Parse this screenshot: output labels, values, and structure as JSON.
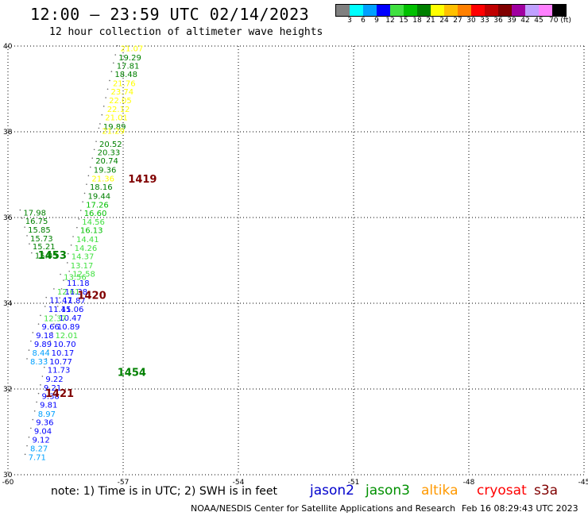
{
  "header": {
    "title": "12:00 – 23:59 UTC 02/14/2023",
    "subtitle": "12 hour collection of altimeter wave heights"
  },
  "color_scale": {
    "labels": [
      "3",
      "6",
      "9",
      "12",
      "15",
      "18",
      "21",
      "24",
      "27",
      "30",
      "33",
      "36",
      "39",
      "42",
      "45",
      "70 (ft)"
    ],
    "colors": [
      "#808080",
      "#00ffff",
      "#00a0ff",
      "#0000ff",
      "#40e040",
      "#00c000",
      "#008000",
      "#ffff00",
      "#ffc000",
      "#ff8000",
      "#ff0000",
      "#c00000",
      "#800000",
      "#a000a0",
      "#c0a0ff",
      "#ff80ff",
      "#000000"
    ]
  },
  "footer": {
    "note": "note:  1) Time is in UTC;  2) SWH is in feet",
    "satellites": [
      {
        "name": "jason2",
        "color": "#0000cc"
      },
      {
        "name": "jason3",
        "color": "#009000"
      },
      {
        "name": "altika",
        "color": "#ff9900"
      },
      {
        "name": "cryosat",
        "color": "#ff0000"
      },
      {
        "name": "s3a",
        "color": "#800000"
      }
    ],
    "credit": "NOAA/NESDIS Center for Satellite Applications and Research",
    "timestamp": "Feb 16 08:29:43 UTC 2023"
  },
  "chart_data": {
    "type": "scatter",
    "xlim": [
      -60,
      -45
    ],
    "ylim": [
      30,
      40
    ],
    "x_ticks": [
      "-60",
      "-57",
      "-54",
      "-51",
      "-48",
      "-45"
    ],
    "y_ticks": [
      "40",
      "38",
      "36",
      "34",
      "32",
      "30"
    ],
    "grid": true,
    "time_labels": [
      {
        "text": "1419",
        "lon": -56.87,
        "lat": 36.91,
        "color": "#800000"
      },
      {
        "text": "1453",
        "lon": -59.22,
        "lat": 35.13,
        "color": "#008000"
      },
      {
        "text": "1420",
        "lon": -58.19,
        "lat": 34.19,
        "color": "#800000"
      },
      {
        "text": "1454",
        "lon": -57.15,
        "lat": 32.4,
        "color": "#008000"
      },
      {
        "text": "1421",
        "lon": -59.03,
        "lat": 31.91,
        "color": "#800000"
      }
    ],
    "points": [
      {
        "v": "21.07",
        "lon": -57.07,
        "lat": 39.95,
        "color": "#ffff00"
      },
      {
        "v": "19.29",
        "lon": -57.12,
        "lat": 39.74,
        "color": "#008000"
      },
      {
        "v": "17.81",
        "lon": -57.17,
        "lat": 39.55,
        "color": "#008000"
      },
      {
        "v": "18.48",
        "lon": -57.22,
        "lat": 39.35,
        "color": "#008000"
      },
      {
        "v": "21.76",
        "lon": -57.27,
        "lat": 39.14,
        "color": "#ffff00"
      },
      {
        "v": "23.74",
        "lon": -57.32,
        "lat": 38.94,
        "color": "#ffff00"
      },
      {
        "v": "22.05",
        "lon": -57.37,
        "lat": 38.74,
        "color": "#ffff00"
      },
      {
        "v": "22.12",
        "lon": -57.42,
        "lat": 38.54,
        "color": "#ffff00"
      },
      {
        "v": "21.01",
        "lon": -57.47,
        "lat": 38.34,
        "color": "#ffff00"
      },
      {
        "v": "19.89",
        "lon": -57.52,
        "lat": 38.13,
        "color": "#008000"
      },
      {
        "v": "21.29",
        "lon": -57.55,
        "lat": 38.03,
        "color": "#ffff00"
      },
      {
        "v": "20.52",
        "lon": -57.62,
        "lat": 37.72,
        "color": "#008000"
      },
      {
        "v": "20.33",
        "lon": -57.67,
        "lat": 37.53,
        "color": "#008000"
      },
      {
        "v": "20.74",
        "lon": -57.72,
        "lat": 37.33,
        "color": "#008000"
      },
      {
        "v": "19.36",
        "lon": -57.77,
        "lat": 37.12,
        "color": "#008000"
      },
      {
        "v": "21.36",
        "lon": -57.82,
        "lat": 36.92,
        "color": "#ffff00"
      },
      {
        "v": "18.16",
        "lon": -57.87,
        "lat": 36.72,
        "color": "#008000"
      },
      {
        "v": "19.44",
        "lon": -57.92,
        "lat": 36.51,
        "color": "#008000"
      },
      {
        "v": "17.26",
        "lon": -57.97,
        "lat": 36.31,
        "color": "#00c000"
      },
      {
        "v": "16.60",
        "lon": -58.02,
        "lat": 36.11,
        "color": "#00c000"
      },
      {
        "v": "17.98",
        "lon": -59.6,
        "lat": 36.12,
        "color": "#008000"
      },
      {
        "v": "16.75",
        "lon": -59.55,
        "lat": 35.93,
        "color": "#008000"
      },
      {
        "v": "15.85",
        "lon": -59.48,
        "lat": 35.72,
        "color": "#008000"
      },
      {
        "v": "15.73",
        "lon": -59.42,
        "lat": 35.52,
        "color": "#008000"
      },
      {
        "v": "15.21",
        "lon": -59.36,
        "lat": 35.33,
        "color": "#008000"
      },
      {
        "v": "15.05",
        "lon": -59.3,
        "lat": 35.12,
        "color": "#008000"
      },
      {
        "v": "14.56",
        "lon": -58.07,
        "lat": 35.91,
        "color": "#40e040"
      },
      {
        "v": "16.13",
        "lon": -58.12,
        "lat": 35.71,
        "color": "#00c000"
      },
      {
        "v": "14.41",
        "lon": -58.22,
        "lat": 35.5,
        "color": "#40e040"
      },
      {
        "v": "14.26",
        "lon": -58.27,
        "lat": 35.3,
        "color": "#40e040"
      },
      {
        "v": "14.37",
        "lon": -58.35,
        "lat": 35.1,
        "color": "#40e040"
      },
      {
        "v": "13.17",
        "lon": -58.37,
        "lat": 34.89,
        "color": "#40e040"
      },
      {
        "v": "13.56",
        "lon": -58.55,
        "lat": 34.62,
        "color": "#40e040"
      },
      {
        "v": "12.58",
        "lon": -58.32,
        "lat": 34.69,
        "color": "#40e040"
      },
      {
        "v": "11.18",
        "lon": -58.47,
        "lat": 34.48,
        "color": "#0000ff"
      },
      {
        "v": "12.61",
        "lon": -58.72,
        "lat": 34.28,
        "color": "#40e040"
      },
      {
        "v": "11.38",
        "lon": -58.52,
        "lat": 34.28,
        "color": "#0000ff"
      },
      {
        "v": "11.47",
        "lon": -58.92,
        "lat": 34.08,
        "color": "#0000ff"
      },
      {
        "v": "11.87",
        "lon": -58.57,
        "lat": 34.07,
        "color": "#0000ff"
      },
      {
        "v": "11.06",
        "lon": -58.62,
        "lat": 33.87,
        "color": "#0000ff"
      },
      {
        "v": "11.45",
        "lon": -58.95,
        "lat": 33.87,
        "color": "#0000ff"
      },
      {
        "v": "10.47",
        "lon": -58.67,
        "lat": 33.67,
        "color": "#0000ff"
      },
      {
        "v": "12.37",
        "lon": -59.07,
        "lat": 33.66,
        "color": "#40e040"
      },
      {
        "v": "10.89",
        "lon": -58.72,
        "lat": 33.46,
        "color": "#0000ff"
      },
      {
        "v": "9.66",
        "lon": -59.12,
        "lat": 33.46,
        "color": "#0000ff"
      },
      {
        "v": "12.01",
        "lon": -58.77,
        "lat": 33.26,
        "color": "#40e040"
      },
      {
        "v": "9.18",
        "lon": -59.27,
        "lat": 33.26,
        "color": "#0000ff"
      },
      {
        "v": "10.70",
        "lon": -58.82,
        "lat": 33.06,
        "color": "#0000ff"
      },
      {
        "v": "9.89",
        "lon": -59.32,
        "lat": 33.06,
        "color": "#0000ff"
      },
      {
        "v": "10.17",
        "lon": -58.87,
        "lat": 32.85,
        "color": "#0000ff"
      },
      {
        "v": "8.44",
        "lon": -59.37,
        "lat": 32.85,
        "color": "#00a0ff"
      },
      {
        "v": "10.77",
        "lon": -58.92,
        "lat": 32.65,
        "color": "#0000ff"
      },
      {
        "v": "8.33",
        "lon": -59.42,
        "lat": 32.65,
        "color": "#00a0ff"
      },
      {
        "v": "11.73",
        "lon": -58.97,
        "lat": 32.45,
        "color": "#0000ff"
      },
      {
        "v": "9.22",
        "lon": -59.02,
        "lat": 32.24,
        "color": "#0000ff"
      },
      {
        "v": "9.21",
        "lon": -59.07,
        "lat": 32.04,
        "color": "#0000ff"
      },
      {
        "v": "9.38",
        "lon": -59.12,
        "lat": 31.84,
        "color": "#0000ff"
      },
      {
        "v": "9.81",
        "lon": -59.17,
        "lat": 31.64,
        "color": "#0000ff"
      },
      {
        "v": "8.97",
        "lon": -59.22,
        "lat": 31.43,
        "color": "#00a0ff"
      },
      {
        "v": "9.36",
        "lon": -59.27,
        "lat": 31.23,
        "color": "#0000ff"
      },
      {
        "v": "9.04",
        "lon": -59.32,
        "lat": 31.03,
        "color": "#0000ff"
      },
      {
        "v": "9.12",
        "lon": -59.37,
        "lat": 30.82,
        "color": "#0000ff"
      },
      {
        "v": "8.27",
        "lon": -59.42,
        "lat": 30.62,
        "color": "#00a0ff"
      },
      {
        "v": "7.71",
        "lon": -59.47,
        "lat": 30.42,
        "color": "#00a0ff"
      }
    ]
  }
}
